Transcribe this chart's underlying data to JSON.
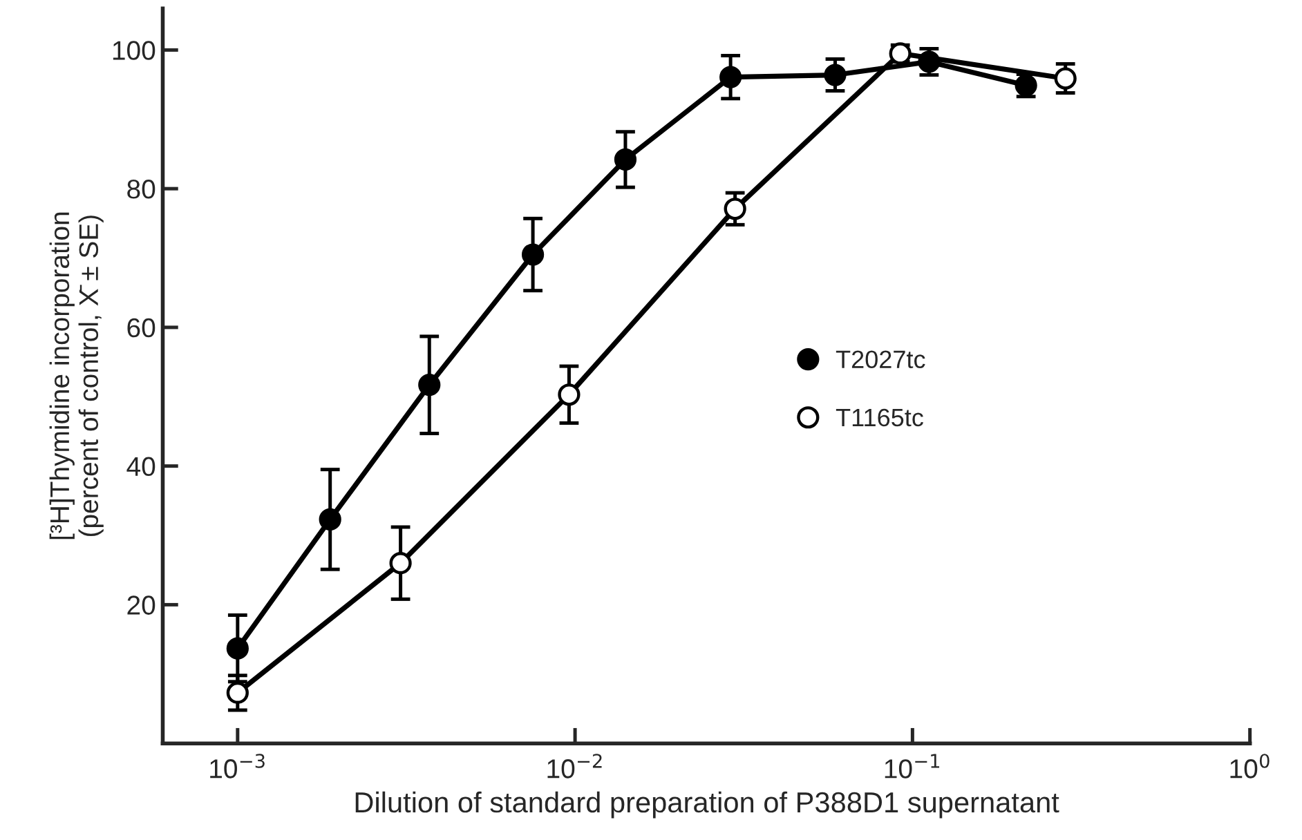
{
  "chart_data": {
    "type": "line",
    "xlabel": "Dilution of standard preparation of P388D1 supernatant",
    "ylabel": "[³H]Thymidine incorporation\n(percent of control, X̄ ± SE)",
    "log": "x",
    "xlim": [
      0.0006,
      1
    ],
    "xticks": [
      {
        "value": 0.001,
        "label": "10$^{−3}$"
      },
      {
        "value": 0.01,
        "label": "10$^{−2}$"
      },
      {
        "value": 0.1,
        "label": "10$^{−1}$"
      },
      {
        "value": 1,
        "label": "10$^{0}$"
      }
    ],
    "ylim": [
      0,
      106
    ],
    "yticks": [
      20,
      40,
      60,
      80,
      100
    ],
    "grid": false,
    "legend": "center",
    "line_style": "solid",
    "series": [
      {
        "name": "T2027tc",
        "color": "#000000",
        "marker": "circle",
        "x": [
          0.001,
          0.00188,
          0.0037,
          0.0075,
          0.0141,
          0.0289,
          0.059,
          0.112,
          0.217
        ],
        "values": [
          13.7,
          32.3,
          51.7,
          70.5,
          84.2,
          96.1,
          96.4,
          98.3,
          94.9
        ],
        "errors": [
          4.8,
          7.2,
          7,
          5.2,
          4,
          3.1,
          2.3,
          1.9,
          1.6
        ]
      },
      {
        "name": "T1165tc",
        "color": "#000000",
        "marker": "circle_open",
        "x": [
          0.001,
          0.00304,
          0.0096,
          0.0298,
          0.092,
          0.284
        ],
        "values": [
          7.3,
          26,
          50.3,
          77.1,
          99.5,
          95.9
        ],
        "errors": [
          2.5,
          5.2,
          4.1,
          2.3,
          1.2,
          2.1
        ]
      }
    ]
  }
}
